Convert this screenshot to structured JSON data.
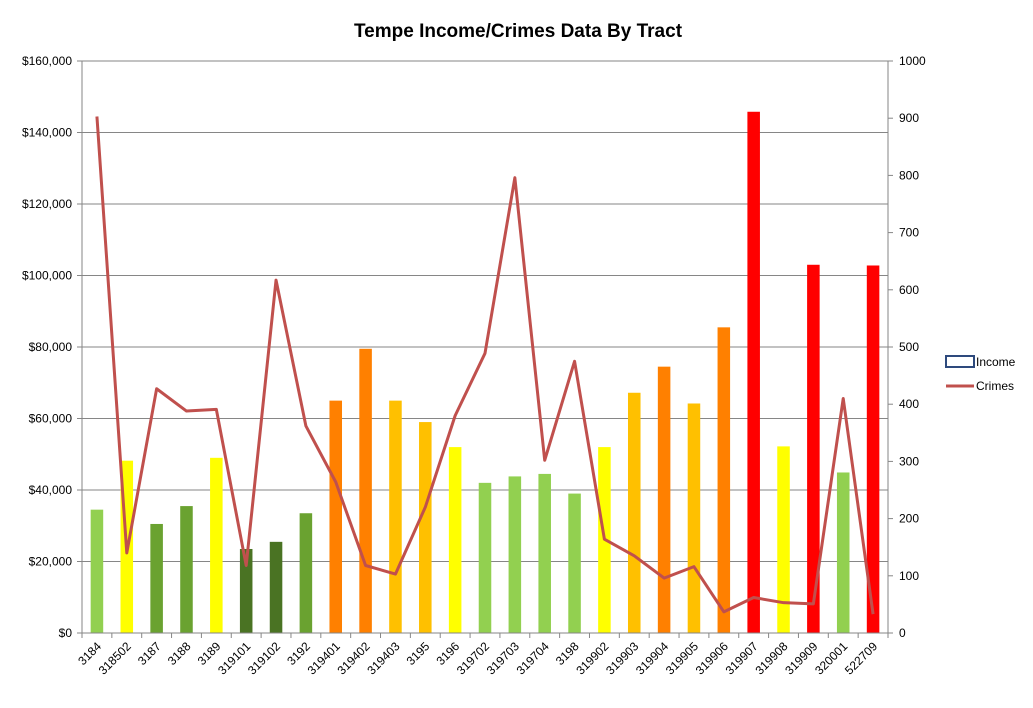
{
  "chart_data": {
    "type": "bar",
    "title": "Tempe Income/Crimes Data By Tract",
    "categories": [
      "3184",
      "318502",
      "3187",
      "3188",
      "3189",
      "319101",
      "319102",
      "3192",
      "319401",
      "319402",
      "319403",
      "3195",
      "3196",
      "319702",
      "319703",
      "319704",
      "3198",
      "319902",
      "319903",
      "319904",
      "319905",
      "319906",
      "319907",
      "319908",
      "319909",
      "320001",
      "522709"
    ],
    "y_axis_left": {
      "min": 0,
      "max": 160000,
      "step": 20000,
      "tick_labels": [
        "$0",
        "$20,000",
        "$40,000",
        "$60,000",
        "$80,000",
        "$100,000",
        "$120,000",
        "$140,000",
        "$160,000"
      ]
    },
    "y_axis_right": {
      "min": 0,
      "max": 1000,
      "step": 100,
      "tick_labels": [
        "0",
        "100",
        "200",
        "300",
        "400",
        "500",
        "600",
        "700",
        "800",
        "900",
        "1000"
      ]
    },
    "grid": "horizontal",
    "legend_position": "right",
    "series": [
      {
        "name": "Income",
        "type": "bar",
        "axis": "left",
        "legend_color": "#2e4a7d",
        "values": [
          34500,
          48200,
          30500,
          35500,
          49000,
          23500,
          25500,
          33500,
          65000,
          79500,
          65000,
          59000,
          52000,
          42000,
          43800,
          44500,
          39000,
          52000,
          67200,
          74500,
          64200,
          85500,
          145800,
          52200,
          103000,
          44900,
          102800
        ],
        "colors": [
          "#92d050",
          "#ffff00",
          "#6aa230",
          "#6aa230",
          "#ffff00",
          "#4a7323",
          "#4a7323",
          "#6aa230",
          "#ff8000",
          "#ff8000",
          "#ffc000",
          "#ffc000",
          "#ffff00",
          "#92d050",
          "#92d050",
          "#92d050",
          "#92d050",
          "#ffff00",
          "#ffc000",
          "#ff8000",
          "#ffc000",
          "#ff8000",
          "#ff0000",
          "#ffff00",
          "#ff0000",
          "#92d050",
          "#ff0000"
        ]
      },
      {
        "name": "Crimes",
        "type": "line",
        "axis": "right",
        "color": "#c0504d",
        "values": [
          903,
          140,
          427,
          388,
          391,
          118,
          617,
          362,
          264,
          118,
          103,
          220,
          380,
          489,
          796,
          302,
          475,
          164,
          135,
          96,
          116,
          37,
          62,
          53,
          51,
          410,
          33
        ]
      }
    ]
  }
}
